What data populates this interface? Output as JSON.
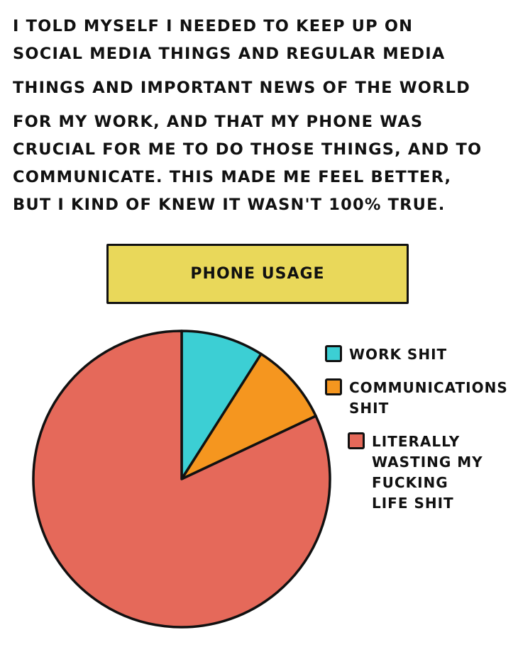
{
  "narration": {
    "lines": [
      "I told myself I needed to keep up on",
      "Social Media Things and Regular Media",
      "Things and Important News of the World",
      "for my work, and that my phone was",
      "crucial for me to do those things, and to",
      "communicate. This made me feel better,",
      "but I kind of knew it wasn't 100% true."
    ]
  },
  "chart_data": {
    "type": "pie",
    "title": "PHONE USAGE",
    "slices": [
      {
        "label": "WORK SHIT",
        "value": 9,
        "color": "#3ccfd4"
      },
      {
        "label": "COMMUNICATIONS SHIT",
        "value": 9,
        "color": "#f5961f"
      },
      {
        "label": "LITERALLY WASTING MY FUCKING LIFE SHIT",
        "value": 82,
        "color": "#e5695a"
      }
    ],
    "legend_position": "right",
    "start_angle": "12 o'clock",
    "direction": "clockwise"
  },
  "legend": {
    "items": [
      {
        "text": "WORK SHIT",
        "color": "#3ccfd4"
      },
      {
        "text": "COMMUNICATIONS\nSHIT",
        "color": "#f5961f"
      },
      {
        "text": "LITERALLY\nWASTING MY\nFUCKING\nLIFE SHIT",
        "color": "#e5695a"
      }
    ]
  }
}
